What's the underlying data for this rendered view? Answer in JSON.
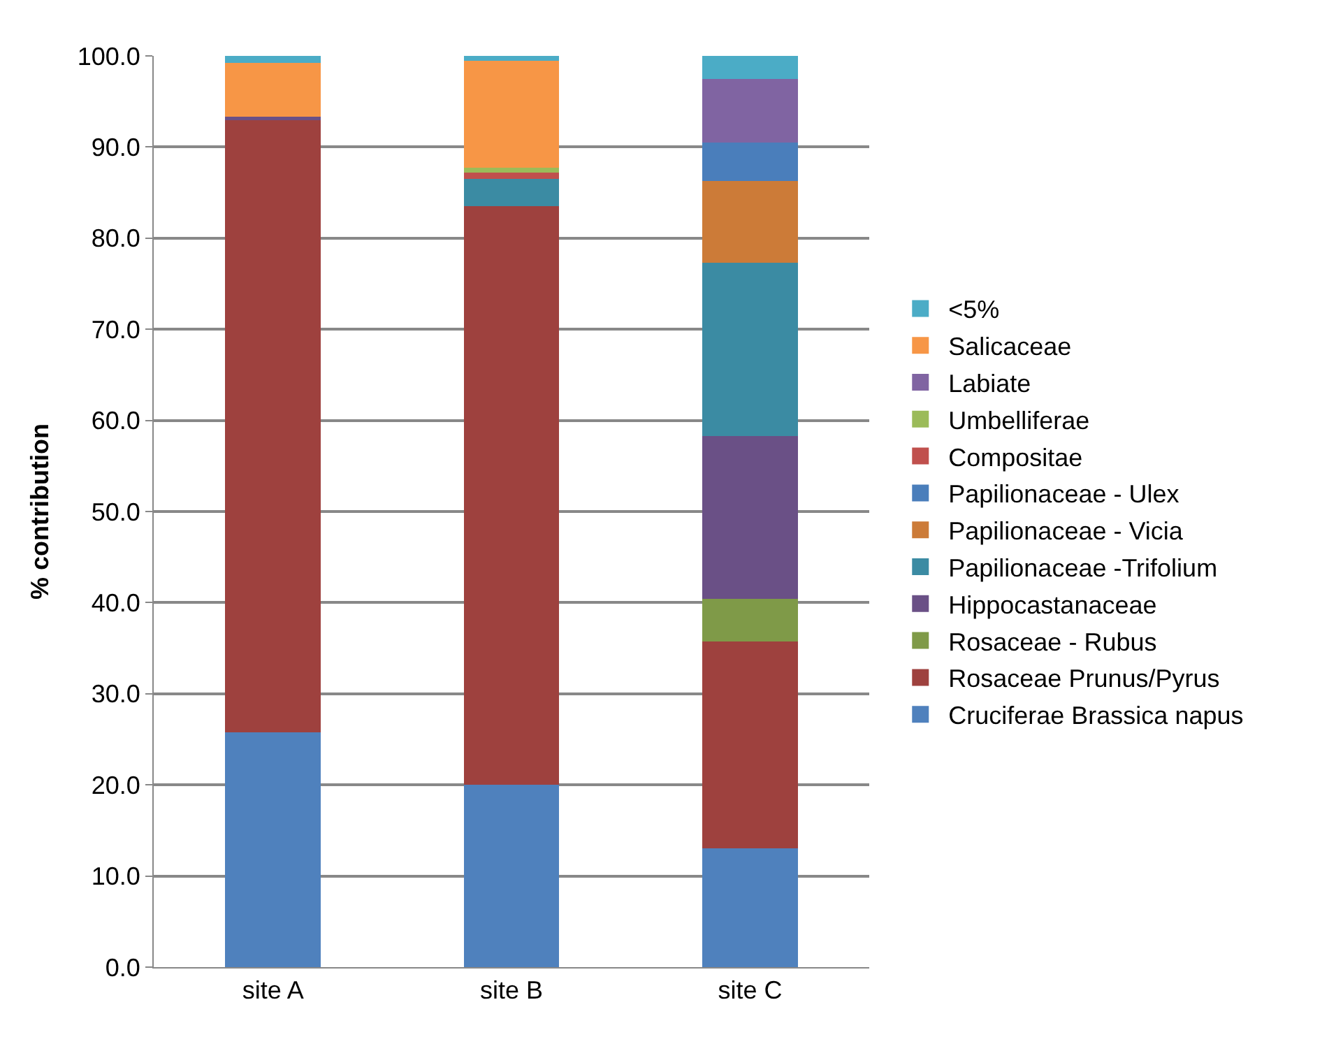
{
  "chart_data": {
    "type": "bar",
    "stacked": true,
    "ylabel": "% contribution",
    "categories": [
      "site A",
      "site B",
      "site C"
    ],
    "series": [
      {
        "name": "Cruciferae Brassica napus",
        "color": "#4f81bd",
        "values": [
          25.8,
          20.0,
          13.0
        ]
      },
      {
        "name": "Rosaceae Prunus/Pyrus",
        "color": "#9e413e",
        "values": [
          67.2,
          63.5,
          22.7
        ]
      },
      {
        "name": "Rosaceae - Rubus",
        "color": "#7f9a48",
        "values": [
          0,
          0,
          4.7
        ]
      },
      {
        "name": "Hippocastanaceae",
        "color": "#6a5086",
        "values": [
          0.3,
          0,
          17.9
        ]
      },
      {
        "name": "Papilionaceae -Trifolium",
        "color": "#3b8ba3",
        "values": [
          0,
          3.0,
          19.0
        ]
      },
      {
        "name": "Papilionaceae - Vicia",
        "color": "#cc7b38",
        "values": [
          0,
          0,
          9.0
        ]
      },
      {
        "name": "Papilionaceae - Ulex",
        "color": "#4a7ebb",
        "values": [
          0,
          0,
          4.2
        ]
      },
      {
        "name": "Compositae",
        "color": "#c0504d",
        "values": [
          0,
          0.7,
          0
        ]
      },
      {
        "name": "Umbelliferae",
        "color": "#9bbb59",
        "values": [
          0,
          0.5,
          0
        ]
      },
      {
        "name": "Labiate",
        "color": "#8064a2",
        "values": [
          0,
          0,
          7.0
        ]
      },
      {
        "name": "Salicaceae",
        "color": "#f79646",
        "values": [
          5.9,
          11.8,
          0
        ]
      },
      {
        "name": "<5%",
        "color": "#4bacc6",
        "values": [
          0.8,
          0.5,
          2.5
        ]
      }
    ],
    "ylim": [
      0,
      100
    ],
    "yticks": [
      {
        "value": 0,
        "label": "0.0"
      },
      {
        "value": 10,
        "label": "10.0"
      },
      {
        "value": 20,
        "label": "20.0"
      },
      {
        "value": 30,
        "label": "30.0"
      },
      {
        "value": 40,
        "label": "40.0"
      },
      {
        "value": 50,
        "label": "50.0"
      },
      {
        "value": 60,
        "label": "60.0"
      },
      {
        "value": 70,
        "label": "70.0"
      },
      {
        "value": 80,
        "label": "80.0"
      },
      {
        "value": 90,
        "label": "90.0"
      },
      {
        "value": 100,
        "label": "100.0"
      }
    ],
    "grid": "y",
    "legend": "right"
  }
}
